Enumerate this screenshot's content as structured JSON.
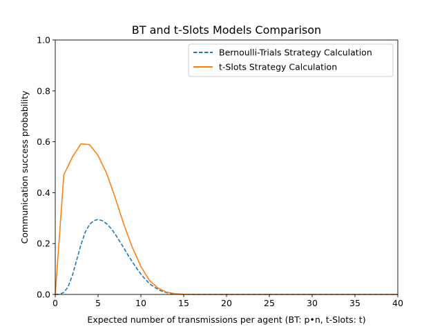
{
  "chart_data": {
    "type": "line",
    "title": "BT and t-Slots Models Comparison",
    "xlabel": "Expected number of transmissions per agent (BT: p•n, t-Slots: t)",
    "ylabel": "Communication success probability",
    "xlim": [
      0,
      40
    ],
    "ylim": [
      0,
      1.0
    ],
    "x_ticks": [
      0,
      5,
      10,
      15,
      20,
      25,
      30,
      35,
      40
    ],
    "x_tick_labels": [
      "0",
      "5",
      "10",
      "15",
      "20",
      "25",
      "30",
      "35",
      "40"
    ],
    "y_ticks": [
      0,
      0.2,
      0.4,
      0.6,
      0.8,
      1.0
    ],
    "y_tick_labels": [
      "0.0",
      "0.2",
      "0.4",
      "0.6",
      "0.8",
      "1.0"
    ],
    "grid": false,
    "legend_position": "top-right",
    "series": [
      {
        "name": "Bernoulli-Trials Strategy Calculation",
        "color": "#1f77b4",
        "style": "dashed",
        "x": [
          0,
          0.5,
          1,
          1.5,
          2,
          2.5,
          3,
          3.5,
          4,
          4.5,
          5,
          5.5,
          6,
          6.5,
          7,
          7.5,
          8,
          8.5,
          9,
          9.5,
          10,
          10.5,
          11,
          11.5,
          12,
          12.5,
          13,
          13.5,
          14,
          15,
          16,
          18,
          20,
          25,
          30,
          35,
          40
        ],
        "y": [
          0,
          0.001,
          0.008,
          0.03,
          0.075,
          0.135,
          0.195,
          0.245,
          0.275,
          0.29,
          0.295,
          0.29,
          0.278,
          0.26,
          0.237,
          0.21,
          0.183,
          0.155,
          0.128,
          0.103,
          0.08,
          0.06,
          0.043,
          0.03,
          0.02,
          0.012,
          0.007,
          0.004,
          0.002,
          0.0005,
          0,
          0,
          0,
          0,
          0,
          0,
          0
        ]
      },
      {
        "name": "t-Slots Strategy Calculation",
        "color": "#ff7f0e",
        "style": "solid",
        "x": [
          0,
          1,
          2,
          3,
          4,
          5,
          6,
          7,
          8,
          9,
          10,
          11,
          12,
          13,
          14,
          15,
          16,
          17,
          18,
          19,
          20,
          25,
          30,
          35,
          40
        ],
        "y": [
          0,
          0.47,
          0.54,
          0.592,
          0.589,
          0.546,
          0.476,
          0.38,
          0.276,
          0.185,
          0.11,
          0.055,
          0.025,
          0.009,
          0.003,
          0.001,
          0,
          0,
          0,
          0,
          0,
          0,
          0,
          0,
          0
        ]
      }
    ]
  }
}
